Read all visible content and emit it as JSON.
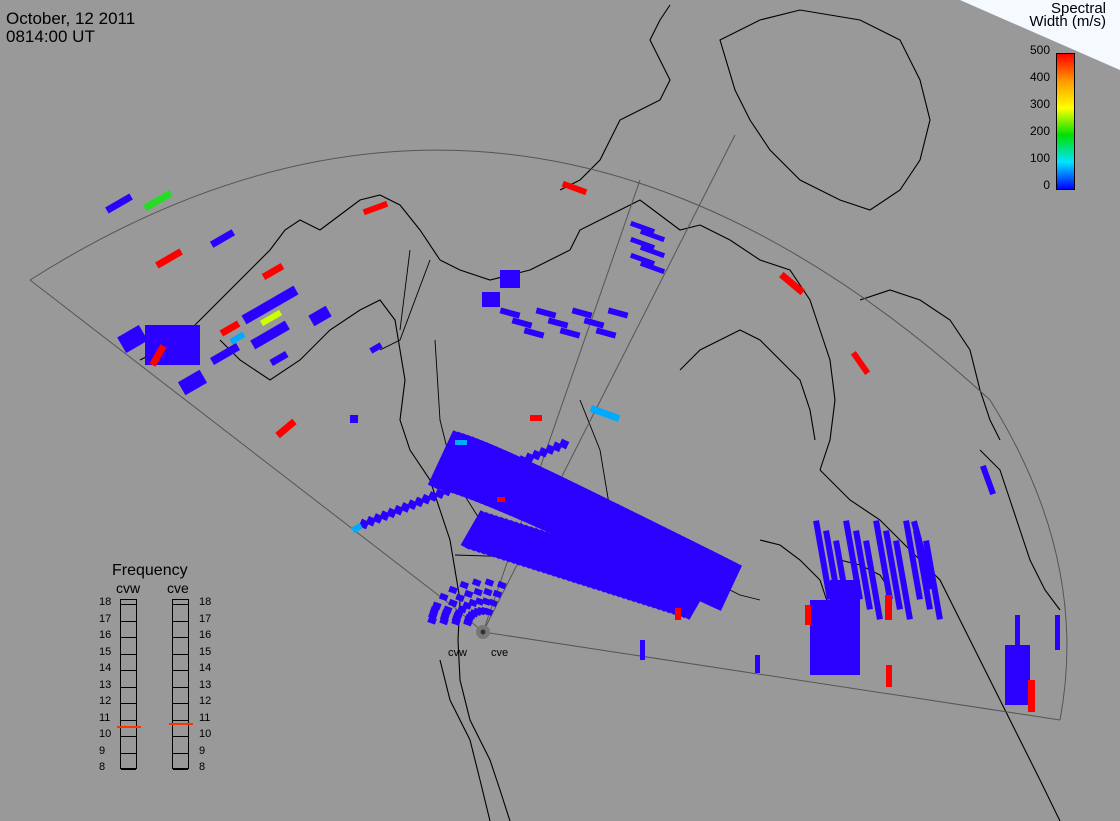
{
  "title": {
    "date": "October, 12 2011",
    "time": "0814:00 UT"
  },
  "colorbar": {
    "title_line1": "Spectral",
    "title_line2": "Width (m/s)",
    "ticks": [
      "500",
      "400",
      "300",
      "200",
      "100",
      "0"
    ],
    "colors": [
      "#ff0000",
      "#ff9900",
      "#ffff00",
      "#00e000",
      "#00e5ff",
      "#0000ff"
    ]
  },
  "frequency_panel": {
    "title": "Frequency",
    "radars": [
      "cvw",
      "cve"
    ],
    "labels": [
      "18",
      "17",
      "16",
      "15",
      "14",
      "13",
      "12",
      "11",
      "10",
      "9",
      "8"
    ],
    "marker_color": "#ff3300",
    "cvw_marker_mhz": 10.6,
    "cve_marker_mhz": 10.8
  },
  "sites": {
    "west": "cvw",
    "east": "cve"
  },
  "colors": {
    "background": "#999999",
    "coast": "#000000",
    "fov": "#555555",
    "low_width": "#2b00ff",
    "mid_width": "#00aaff",
    "high_width": "#ff0000",
    "green_width": "#22dd22",
    "yellow_width": "#ccff00"
  }
}
